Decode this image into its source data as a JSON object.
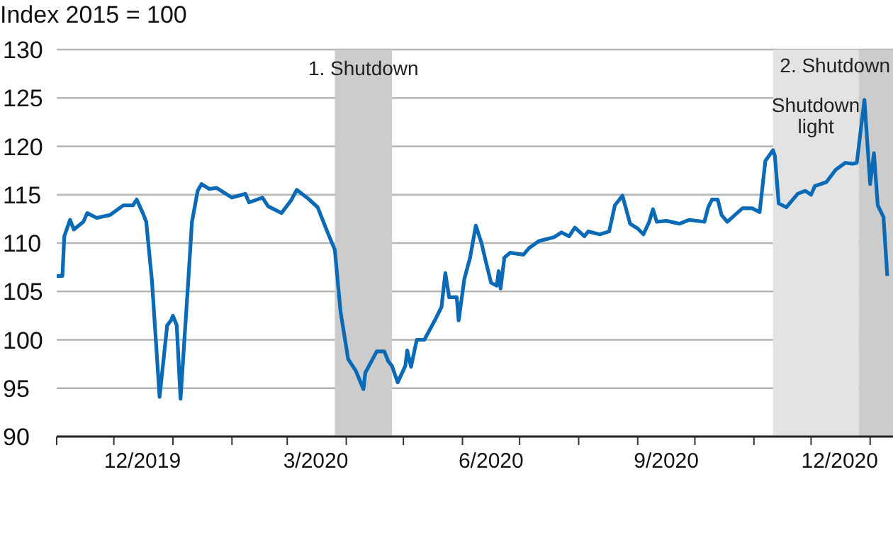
{
  "chart_data": {
    "type": "line",
    "ylabel": "Index 2015 = 100",
    "x": [
      "2019-11-01",
      "2019-11-04",
      "2019-11-05",
      "2019-11-08",
      "2019-11-10",
      "2019-11-15",
      "2019-11-17",
      "2019-11-22",
      "2019-11-29",
      "2019-12-06",
      "2019-12-11",
      "2019-12-13",
      "2019-12-16",
      "2019-12-18",
      "2019-12-21",
      "2019-12-25",
      "2019-12-29",
      "2019-12-31",
      "2020-01-01",
      "2020-01-03",
      "2020-01-05",
      "2020-01-09",
      "2020-01-11",
      "2020-01-14",
      "2020-01-16",
      "2020-01-20",
      "2020-01-24",
      "2020-02-01",
      "2020-02-08",
      "2020-02-10",
      "2020-02-17",
      "2020-02-20",
      "2020-02-27",
      "2020-03-03",
      "2020-03-06",
      "2020-03-12",
      "2020-03-17",
      "2020-03-22",
      "2020-03-26",
      "2020-03-29",
      "2020-04-02",
      "2020-04-06",
      "2020-04-10",
      "2020-04-11",
      "2020-04-17",
      "2020-04-21",
      "2020-04-23",
      "2020-04-25",
      "2020-04-28",
      "2020-05-02",
      "2020-05-03",
      "2020-05-05",
      "2020-05-08",
      "2020-05-12",
      "2020-05-18",
      "2020-05-21",
      "2020-05-23",
      "2020-05-25",
      "2020-05-27",
      "2020-05-29",
      "2020-05-30",
      "2020-06-02",
      "2020-06-05",
      "2020-06-08",
      "2020-06-11",
      "2020-06-13",
      "2020-06-16",
      "2020-06-19",
      "2020-06-20",
      "2020-06-21",
      "2020-06-23",
      "2020-06-26",
      "2020-07-03",
      "2020-07-06",
      "2020-07-11",
      "2020-07-19",
      "2020-07-23",
      "2020-07-27",
      "2020-07-30",
      "2020-08-04",
      "2020-08-06",
      "2020-08-12",
      "2020-08-17",
      "2020-08-20",
      "2020-08-24",
      "2020-08-28",
      "2020-09-01",
      "2020-09-04",
      "2020-09-07",
      "2020-09-09",
      "2020-09-11",
      "2020-09-16",
      "2020-09-23",
      "2020-09-28",
      "2020-10-06",
      "2020-10-08",
      "2020-10-10",
      "2020-10-13",
      "2020-10-15",
      "2020-10-18",
      "2020-10-22",
      "2020-10-26",
      "2020-10-31",
      "2020-11-04",
      "2020-11-07",
      "2020-11-11",
      "2020-11-12",
      "2020-11-14",
      "2020-11-18",
      "2020-11-24",
      "2020-11-28",
      "2020-12-01",
      "2020-12-03",
      "2020-12-09",
      "2020-12-14",
      "2020-12-19",
      "2020-12-23",
      "2020-12-25",
      "2020-12-29",
      "2021-01-01",
      "2021-01-03",
      "2021-01-05",
      "2021-01-08",
      "2021-01-10"
    ],
    "series": [
      {
        "color": "#0a6ab6",
        "values": [
          106.6,
          106.6,
          110.7,
          112.4,
          111.4,
          112.2,
          113.1,
          112.6,
          112.9,
          113.9,
          113.9,
          114.5,
          113.2,
          112.2,
          106.1,
          94.1,
          101.5,
          102,
          102.5,
          101.5,
          93.9,
          105.9,
          112.2,
          115.4,
          116.1,
          115.6,
          115.7,
          114.7,
          115.1,
          114.2,
          114.7,
          113.8,
          113.1,
          114.4,
          115.5,
          114.6,
          113.7,
          111.2,
          109.3,
          102.9,
          98,
          96.8,
          94.9,
          96.6,
          98.8,
          98.8,
          97.8,
          97.3,
          95.6,
          97.3,
          98.9,
          97.2,
          100,
          100,
          102.2,
          103.4,
          106.9,
          104.4,
          104.4,
          104.4,
          102,
          106.3,
          108.5,
          111.8,
          110,
          108.3,
          105.9,
          105.6,
          107.1,
          105.3,
          108.5,
          109,
          108.8,
          109.5,
          110.2,
          110.6,
          111.1,
          110.7,
          111.6,
          110.7,
          111.2,
          110.9,
          111.2,
          113.9,
          114.9,
          112,
          111.5,
          110.9,
          112.2,
          113.5,
          112.2,
          112.3,
          112,
          112.4,
          112.2,
          113.7,
          114.5,
          114.5,
          112.9,
          112.2,
          112.9,
          113.6,
          113.6,
          113.2,
          118.5,
          119.6,
          119,
          114.1,
          113.7,
          115.1,
          115.4,
          115,
          115.9,
          116.3,
          117.6,
          118.3,
          118.2,
          118.3,
          124.8,
          116.1,
          119.3,
          113.9,
          112.7,
          106.6
        ]
      }
    ],
    "xlim": [
      "2019-11-01",
      "2021-01-13"
    ],
    "xticks": [
      {
        "value": "2019-11-01",
        "label": null
      },
      {
        "value": "2019-12-01",
        "label": null
      },
      {
        "value": "2019-12-16",
        "label": "12/2019"
      },
      {
        "value": "2020-01-01",
        "label": null
      },
      {
        "value": "2020-02-01",
        "label": null
      },
      {
        "value": "2020-03-01",
        "label": null
      },
      {
        "value": "2020-03-16",
        "label": "3/2020"
      },
      {
        "value": "2020-04-01",
        "label": null
      },
      {
        "value": "2020-05-01",
        "label": null
      },
      {
        "value": "2020-06-01",
        "label": null
      },
      {
        "value": "2020-06-16",
        "label": "6/2020"
      },
      {
        "value": "2020-07-01",
        "label": null
      },
      {
        "value": "2020-08-01",
        "label": null
      },
      {
        "value": "2020-09-01",
        "label": null
      },
      {
        "value": "2020-09-16",
        "label": "9/2020"
      },
      {
        "value": "2020-10-01",
        "label": null
      },
      {
        "value": "2020-11-01",
        "label": null
      },
      {
        "value": "2020-12-01",
        "label": null
      },
      {
        "value": "2020-12-16",
        "label": "12/2020"
      },
      {
        "value": "2021-01-01",
        "label": null
      }
    ],
    "ylim": [
      90,
      130
    ],
    "yticks": [
      90,
      95,
      100,
      105,
      110,
      115,
      120,
      125,
      130
    ],
    "grid": "y",
    "bands": [
      {
        "axis": "x",
        "from": "2020-03-26",
        "to": "2020-04-25",
        "label": "1. Shutdown",
        "color": "#cccccc"
      },
      {
        "axis": "x",
        "from": "2020-11-11",
        "to": "2020-12-26",
        "label": "Shutdown light",
        "color": "#e3e3e3"
      },
      {
        "axis": "x",
        "from": "2020-12-26",
        "to": "2021-01-13",
        "label": "2. Shutdown",
        "color": "#cccccc"
      }
    ]
  }
}
